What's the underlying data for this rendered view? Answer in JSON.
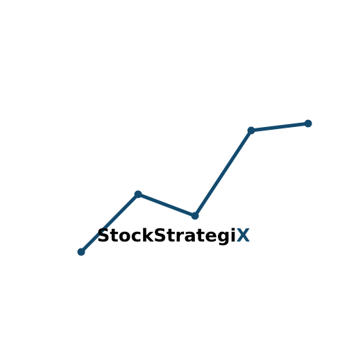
{
  "brand": {
    "name_main": "StockStrategi",
    "name_accent": "X"
  },
  "colors": {
    "background": "#ffffff",
    "line": "#134a6e",
    "text": "#000000",
    "accent": "#134a6e"
  },
  "icons": {
    "logo_mark": "rising-trend-line-icon"
  }
}
